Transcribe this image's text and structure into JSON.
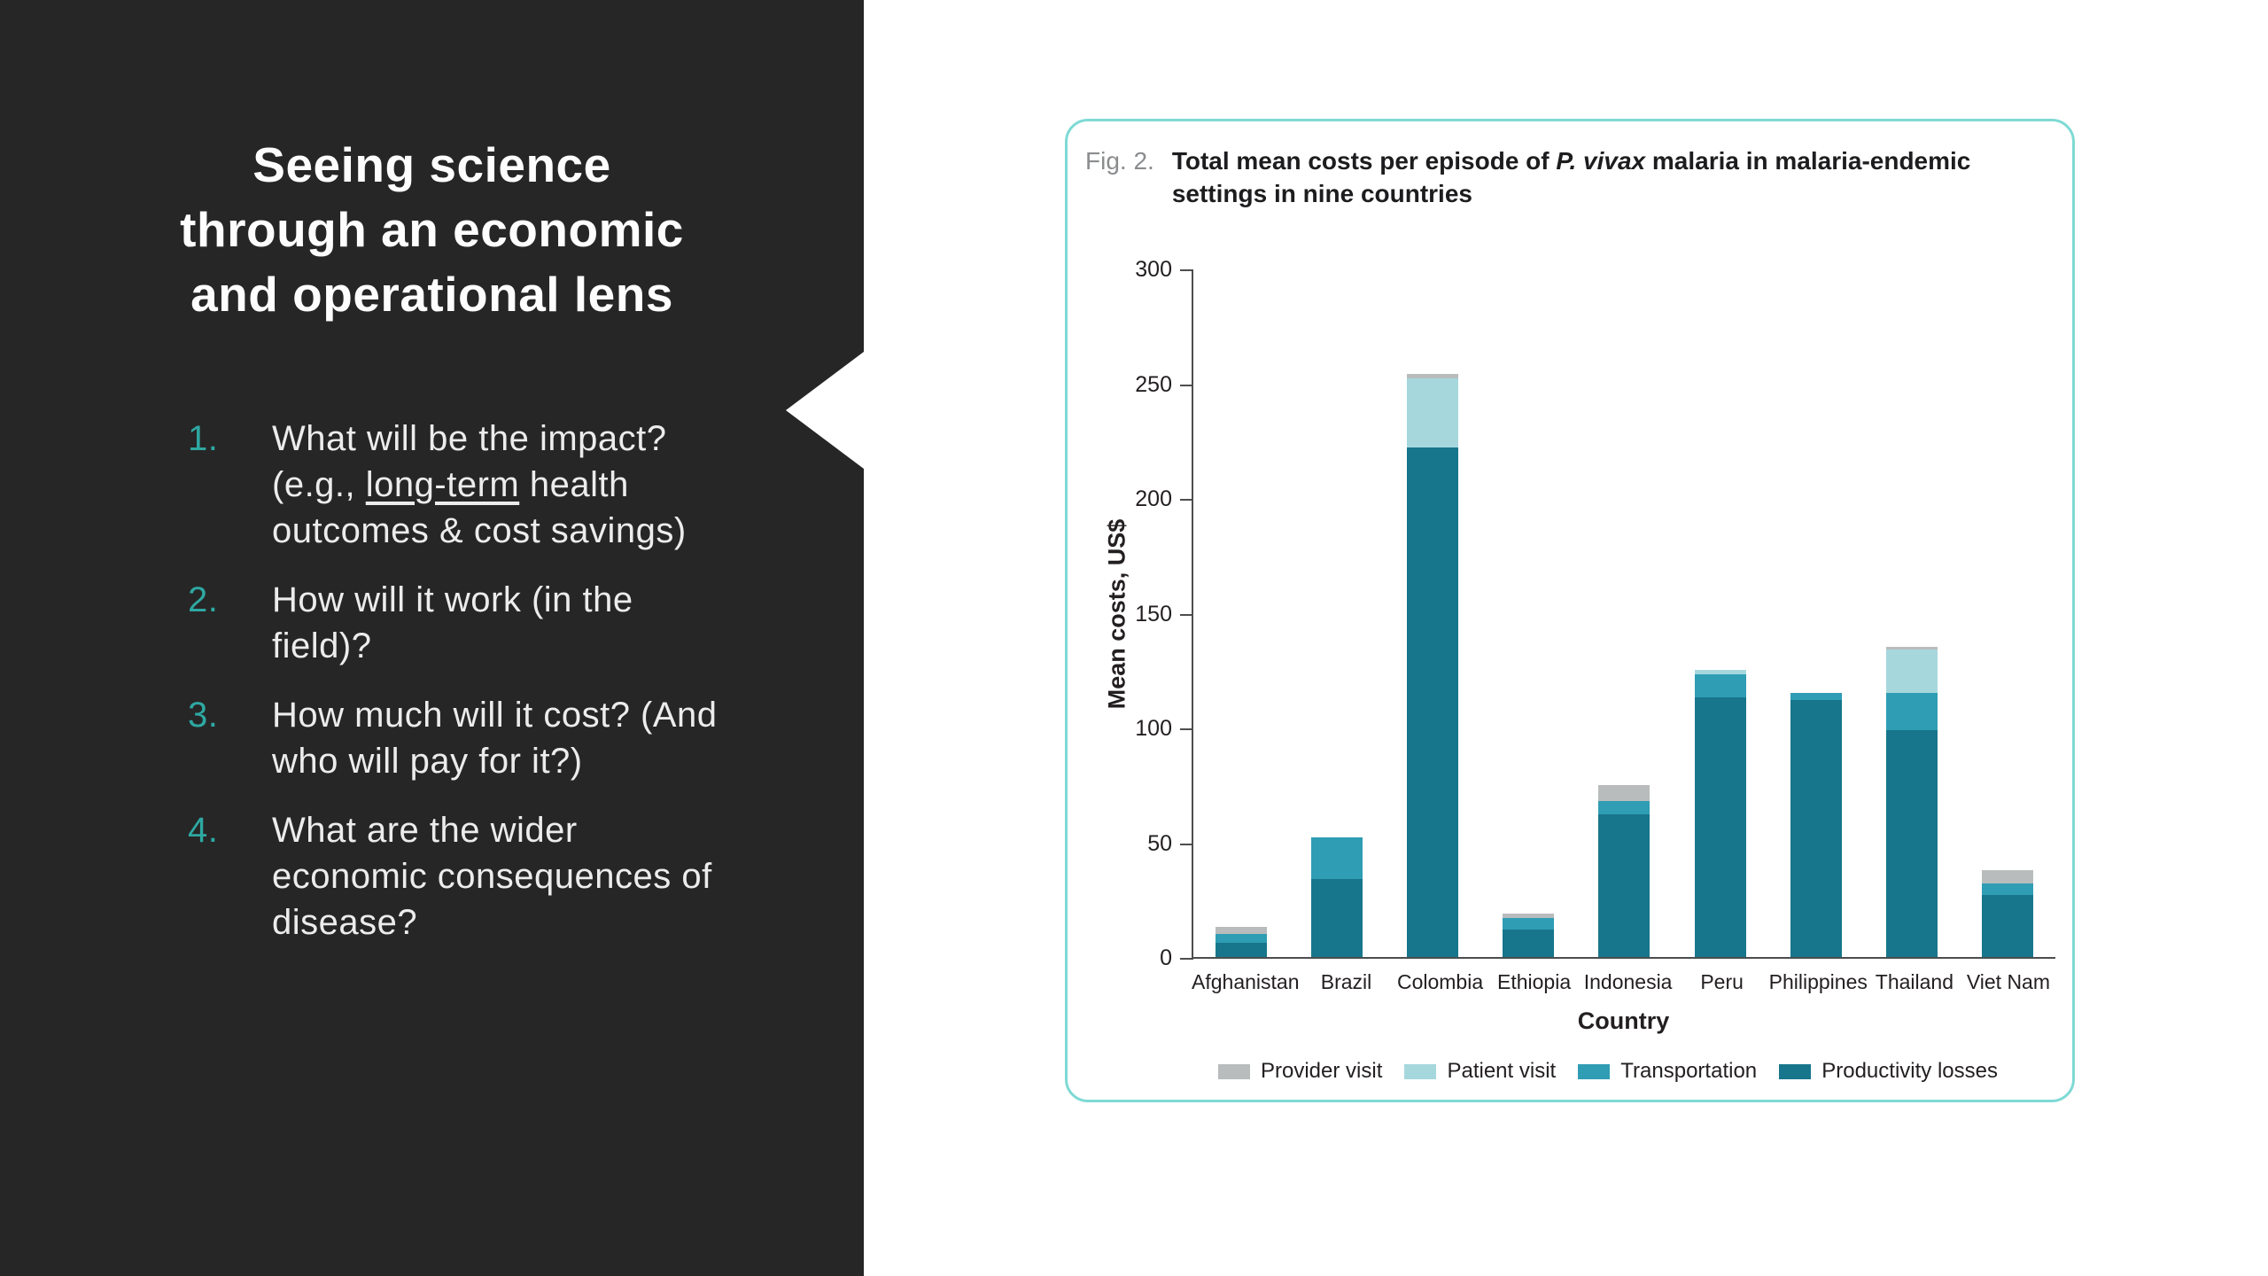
{
  "slide": {
    "panel_color": "#262626",
    "accent_color": "#2ea8a2",
    "title_lines": [
      "Seeing science",
      "through an economic",
      "and operational lens"
    ],
    "list": [
      {
        "number": "1.",
        "segments": [
          {
            "text": "What will be the impact? (e.g., "
          },
          {
            "text": "long-term",
            "underline": true
          },
          {
            "text": " health outcomes & cost savings)"
          }
        ]
      },
      {
        "number": "2.",
        "segments": [
          {
            "text": "How will it work (in the field)?"
          }
        ]
      },
      {
        "number": "3.",
        "segments": [
          {
            "text": "How much will it cost? (And who will pay for it?)"
          }
        ]
      },
      {
        "number": "4.",
        "segments": [
          {
            "text": "What are the wider economic consequences of disease?"
          }
        ]
      }
    ]
  },
  "figure": {
    "label": "Fig. 2.",
    "border_color": "#7edad4",
    "title_parts": [
      {
        "text": "Total mean costs per episode of "
      },
      {
        "text": "P. vivax",
        "italic": true
      },
      {
        "text": " malaria in malaria-endemic settings in nine countries"
      }
    ]
  },
  "chart_data": {
    "type": "bar",
    "stacked": true,
    "title": "Total mean costs per episode of P. vivax malaria in malaria-endemic settings in nine countries",
    "xlabel": "Country",
    "ylabel": "Mean costs, US$",
    "ylim": [
      0,
      300
    ],
    "yticks": [
      0,
      50,
      100,
      150,
      200,
      250,
      300
    ],
    "grid": false,
    "legend_position": "bottom",
    "categories": [
      "Afghanistan",
      "Brazil",
      "Colombia",
      "Ethiopia",
      "Indonesia",
      "Peru",
      "Philippines",
      "Thailand",
      "Viet Nam"
    ],
    "series": [
      {
        "name": "Productivity losses",
        "color": "#17768b",
        "values": [
          6,
          34,
          222,
          12,
          62,
          113,
          112,
          99,
          27
        ]
      },
      {
        "name": "Transportation",
        "color": "#2f9db4",
        "values": [
          4,
          18,
          0,
          5,
          6,
          10,
          3,
          16,
          5
        ]
      },
      {
        "name": "Patient visit",
        "color": "#a6d7dd",
        "values": [
          0,
          0,
          30,
          0,
          0,
          2,
          0,
          19,
          0
        ]
      },
      {
        "name": "Provider visit",
        "color": "#b9bcbc",
        "values": [
          3,
          0,
          2,
          2,
          7,
          0,
          0,
          1,
          6
        ]
      }
    ],
    "legend": [
      {
        "label": "Provider visit",
        "color": "#b9bcbc"
      },
      {
        "label": "Patient visit",
        "color": "#a6d7dd"
      },
      {
        "label": "Transportation",
        "color": "#2f9db4"
      },
      {
        "label": "Productivity losses",
        "color": "#17768b"
      }
    ]
  }
}
